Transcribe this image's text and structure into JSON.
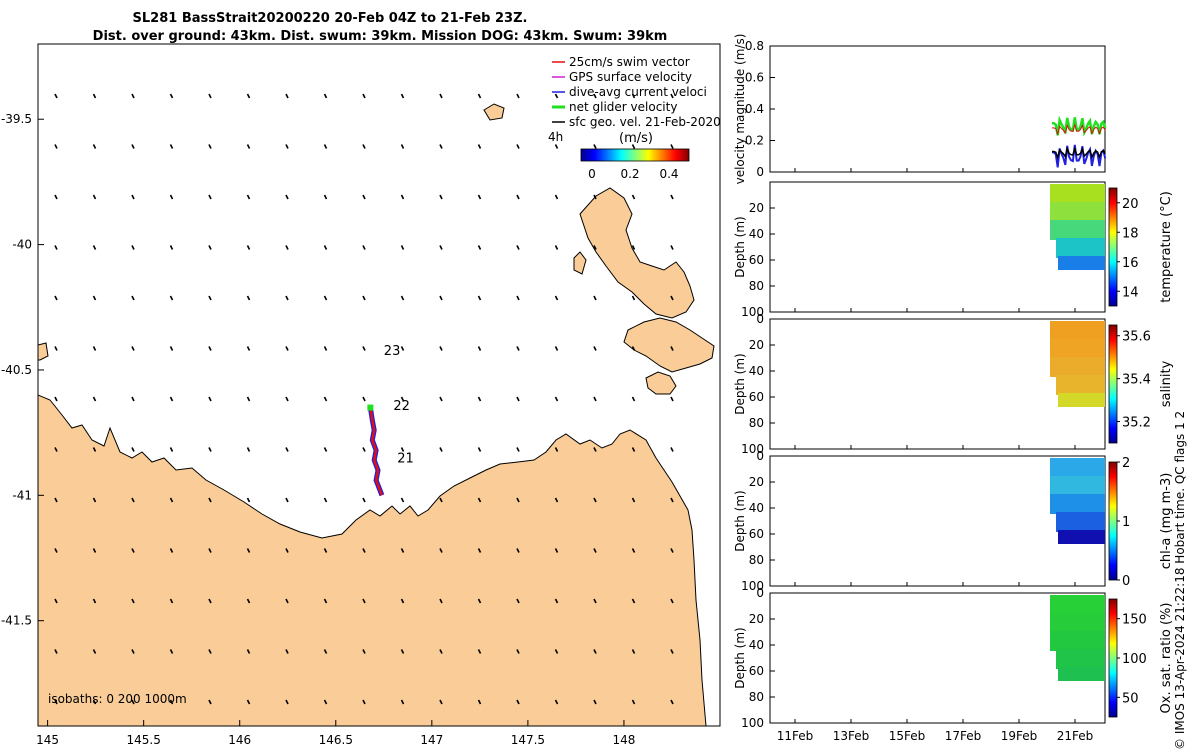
{
  "title": {
    "line1": "SL281 BassStrait20200220 20-Feb 04Z to 21-Feb 23Z.",
    "line2": "Dist. over ground: 43km. Dist. swum: 39km. Mission DOG: 43km. Swum: 39km"
  },
  "colors": {
    "land": "#f9cc98",
    "sea": "#ffffff",
    "swim_vector": "#e01010",
    "gps_velocity": "#d020d0",
    "dive_avg_current": "#2020e0",
    "net_glider_velocity": "#20e020",
    "geo_velocity": "#000000"
  },
  "map": {
    "legend": [
      {
        "key": "swim",
        "label": "25cm/s swim vector"
      },
      {
        "key": "gps",
        "label": "GPS surface velocity"
      },
      {
        "key": "dive",
        "label": "dive-avg current veloci"
      },
      {
        "key": "net",
        "label": "net glider velocity"
      },
      {
        "key": "geo",
        "label": "sfc geo. vel. 21-Feb-2020"
      }
    ],
    "time_label": "4h",
    "colorbar_title": "(m/s)",
    "colorbar_ticks": [
      "0",
      "0.2",
      "0.4"
    ],
    "colorbar_range": [
      0,
      0.5
    ],
    "lon_ticks": [
      "145",
      "145.5",
      "146",
      "146.5",
      "147",
      "147.5",
      "148"
    ],
    "lat_ticks": [
      "-39.5",
      "-40",
      "-40.5",
      "-41",
      "-41.5"
    ],
    "lon_range": [
      144.95,
      148.5
    ],
    "lat_range": [
      -41.92,
      -39.2
    ],
    "day_labels": [
      {
        "text": "23",
        "lon": 146.75,
        "lat": -40.44
      },
      {
        "text": "22",
        "lon": 146.8,
        "lat": -40.66
      },
      {
        "text": "21",
        "lon": 146.82,
        "lat": -40.87
      }
    ],
    "isobaths_label": "isobaths: 0   200  1000m",
    "track": [
      [
        146.68,
        -40.65
      ],
      [
        146.69,
        -40.7
      ],
      [
        146.7,
        -40.74
      ],
      [
        146.69,
        -40.78
      ],
      [
        146.71,
        -40.82
      ],
      [
        146.7,
        -40.86
      ],
      [
        146.72,
        -40.9
      ],
      [
        146.71,
        -40.94
      ],
      [
        146.73,
        -40.98
      ],
      [
        146.74,
        -41.0
      ]
    ]
  },
  "panels": {
    "x_ticks": [
      "11Feb",
      "13Feb",
      "15Feb",
      "17Feb",
      "19Feb",
      "21Feb"
    ],
    "velocity": {
      "ylabel": "velocity magnitude (m/s)",
      "y_ticks": [
        "0",
        "0.2",
        "0.4",
        "0.6",
        "0.8"
      ],
      "ylim": [
        0,
        0.8
      ]
    },
    "temperature": {
      "ylabel": "Depth (m)",
      "clabel": "temperature (°C)",
      "cticks": [
        "14",
        "16",
        "18",
        "20"
      ],
      "crange": [
        13,
        21
      ],
      "y_ticks": [
        "20",
        "40",
        "60",
        "80",
        "100"
      ]
    },
    "salinity": {
      "ylabel": "Depth (m)",
      "clabel": "salinity",
      "cticks": [
        "35.2",
        "35.4",
        "35.6"
      ],
      "crange": [
        35.1,
        35.65
      ],
      "y_ticks": [
        "0",
        "20",
        "40",
        "60",
        "80",
        "100"
      ]
    },
    "chla": {
      "ylabel": "Depth (m)",
      "clabel": "chl-a (mg m-3)",
      "cticks": [
        "0",
        "1",
        "2"
      ],
      "crange": [
        0,
        2
      ],
      "y_ticks": [
        "0",
        "20",
        "40",
        "60",
        "80",
        "100"
      ]
    },
    "oxygen": {
      "ylabel": "Depth (m)",
      "clabel": "Ox. sat. ratio (%)",
      "cticks": [
        "50",
        "100",
        "150"
      ],
      "crange": [
        25,
        175
      ],
      "y_ticks": [
        "0",
        "20",
        "40",
        "60",
        "80",
        "100"
      ]
    }
  },
  "footer": {
    "credit": "© IMOS 13-Apr-2024 21:22:18 Hobart time. QC flags 1  2"
  }
}
